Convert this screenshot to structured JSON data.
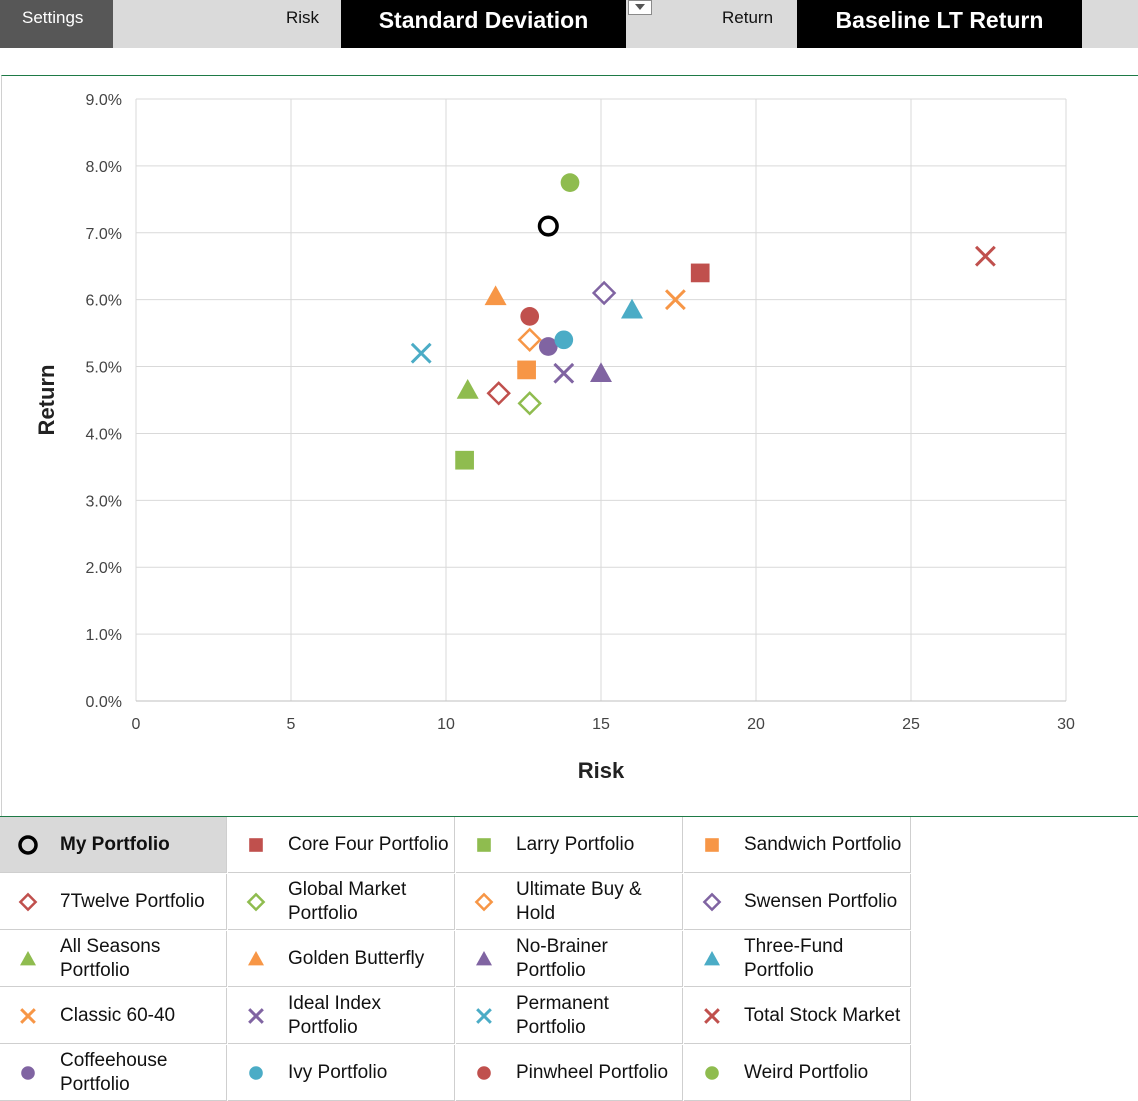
{
  "toolbar": {
    "settings_label": "Settings",
    "risk_label": "Risk",
    "risk_value": "Standard Deviation",
    "return_label": "Return",
    "return_value": "Baseline LT Return"
  },
  "chart_data": {
    "type": "scatter",
    "xlabel": "Risk",
    "ylabel": "Return",
    "xlim": [
      0,
      30
    ],
    "ylim": [
      0,
      9
    ],
    "x_ticks": [
      "0",
      "5",
      "10",
      "15",
      "20",
      "25",
      "30"
    ],
    "y_ticks": [
      "0.0%",
      "1.0%",
      "2.0%",
      "3.0%",
      "4.0%",
      "5.0%",
      "6.0%",
      "7.0%",
      "8.0%",
      "9.0%"
    ],
    "grid": true,
    "legend_position": "bottom",
    "series": [
      {
        "name": "My Portfolio",
        "marker": "open-circle",
        "color": "#000000",
        "x": 13.3,
        "y": 7.1
      },
      {
        "name": "Core Four Portfolio",
        "marker": "square",
        "color": "#c0504d",
        "x": 18.2,
        "y": 6.4
      },
      {
        "name": "Larry Portfolio",
        "marker": "square",
        "color": "#8fbc4f",
        "x": 10.6,
        "y": 3.6
      },
      {
        "name": "Sandwich Portfolio",
        "marker": "square",
        "color": "#f79646",
        "x": 12.6,
        "y": 4.95
      },
      {
        "name": "7Twelve Portfolio",
        "marker": "diamond",
        "color": "#c0504d",
        "x": 11.7,
        "y": 4.6
      },
      {
        "name": "Global Market Portfolio",
        "marker": "diamond",
        "color": "#8fbc4f",
        "x": 12.7,
        "y": 4.45
      },
      {
        "name": "Ultimate Buy & Hold",
        "marker": "diamond",
        "color": "#f79646",
        "x": 12.7,
        "y": 5.4
      },
      {
        "name": "Swensen Portfolio",
        "marker": "diamond",
        "color": "#8064a2",
        "x": 15.1,
        "y": 6.1
      },
      {
        "name": "All Seasons Portfolio",
        "marker": "triangle",
        "color": "#8fbc4f",
        "x": 10.7,
        "y": 4.65
      },
      {
        "name": "Golden Butterfly",
        "marker": "triangle",
        "color": "#f79646",
        "x": 11.6,
        "y": 6.05
      },
      {
        "name": "No-Brainer Portfolio",
        "marker": "triangle",
        "color": "#8064a2",
        "x": 15.0,
        "y": 4.9
      },
      {
        "name": "Three-Fund Portfolio",
        "marker": "triangle",
        "color": "#4bacc6",
        "x": 16.0,
        "y": 5.85
      },
      {
        "name": "Classic 60-40",
        "marker": "x",
        "color": "#f79646",
        "x": 17.4,
        "y": 6.0
      },
      {
        "name": "Ideal Index Portfolio",
        "marker": "x",
        "color": "#8064a2",
        "x": 13.8,
        "y": 4.9
      },
      {
        "name": "Permanent Portfolio",
        "marker": "x",
        "color": "#4bacc6",
        "x": 9.2,
        "y": 5.2
      },
      {
        "name": "Total Stock Market",
        "marker": "x",
        "color": "#c0504d",
        "x": 27.4,
        "y": 6.65
      },
      {
        "name": "Coffeehouse Portfolio",
        "marker": "circle",
        "color": "#8064a2",
        "x": 13.3,
        "y": 5.3
      },
      {
        "name": "Ivy Portfolio",
        "marker": "circle",
        "color": "#4bacc6",
        "x": 13.8,
        "y": 5.4
      },
      {
        "name": "Pinwheel Portfolio",
        "marker": "circle",
        "color": "#c0504d",
        "x": 12.7,
        "y": 5.75
      },
      {
        "name": "Weird Portfolio",
        "marker": "circle",
        "color": "#8fbc4f",
        "x": 14.0,
        "y": 7.75
      }
    ]
  },
  "legend": {
    "selected_index": 0
  }
}
